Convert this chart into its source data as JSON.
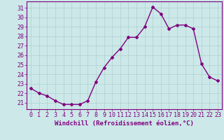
{
  "x": [
    0,
    1,
    2,
    3,
    4,
    5,
    6,
    7,
    8,
    9,
    10,
    11,
    12,
    13,
    14,
    15,
    16,
    17,
    18,
    19,
    20,
    21,
    22,
    23
  ],
  "y": [
    22.5,
    22.0,
    21.7,
    21.2,
    20.8,
    20.8,
    20.8,
    21.2,
    23.2,
    24.7,
    25.8,
    26.7,
    27.9,
    27.9,
    29.0,
    31.1,
    30.4,
    28.8,
    29.2,
    29.2,
    28.8,
    25.1,
    23.7,
    23.3
  ],
  "line_color": "#800080",
  "marker": "D",
  "marker_size": 2,
  "xlabel": "Windchill (Refroidissement éolien,°C)",
  "xlim": [
    -0.5,
    23.5
  ],
  "ylim": [
    20.3,
    31.7
  ],
  "yticks": [
    21,
    22,
    23,
    24,
    25,
    26,
    27,
    28,
    29,
    30,
    31
  ],
  "xtick_labels": [
    "0",
    "1",
    "2",
    "3",
    "4",
    "5",
    "6",
    "7",
    "8",
    "9",
    "10",
    "11",
    "12",
    "13",
    "14",
    "15",
    "16",
    "17",
    "18",
    "19",
    "20",
    "21",
    "22",
    "23"
  ],
  "bg_color": "#cce8e8",
  "grid_color": "#b0d0d0",
  "line_width": 1.0,
  "xlabel_fontsize": 6.5,
  "tick_fontsize": 6.0,
  "xlabel_color": "#800080",
  "tick_color": "#800080"
}
